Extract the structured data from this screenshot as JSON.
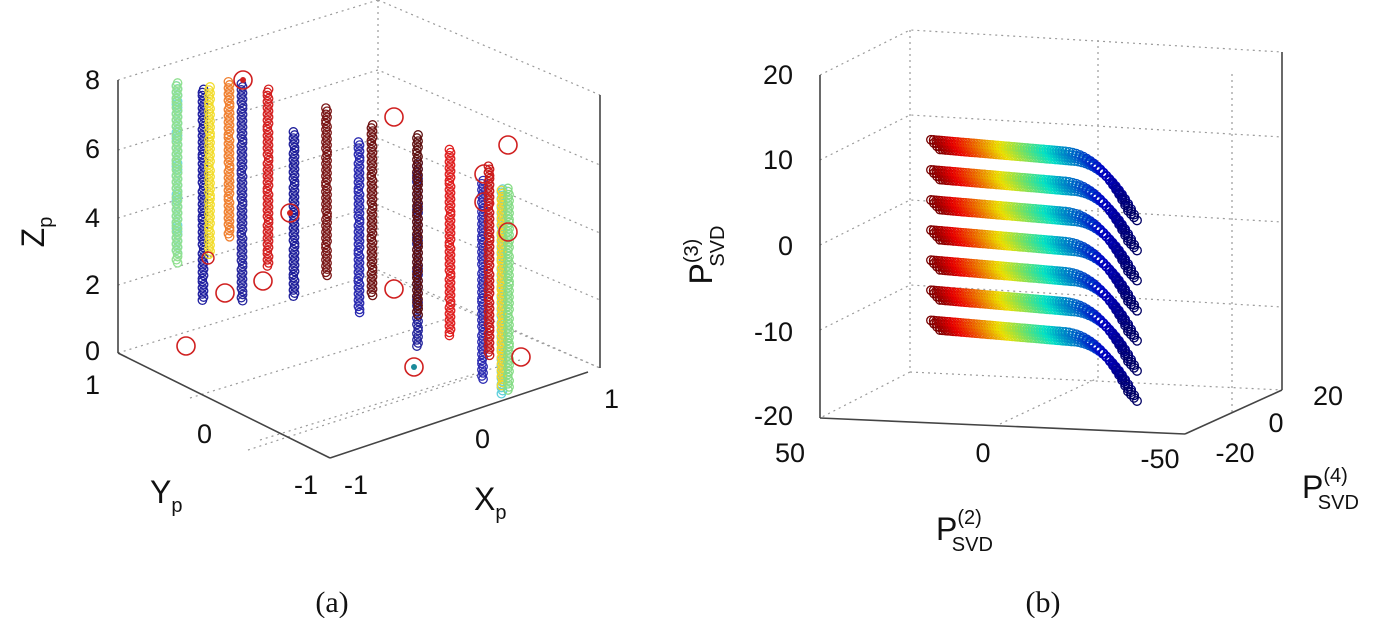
{
  "chart_data": [
    {
      "type": "scatter3d",
      "panel_label": "(a)",
      "axes": {
        "x": {
          "label": "X",
          "sub": "p",
          "ticks": [
            "-1",
            "0",
            "1"
          ],
          "range": [
            -1,
            1
          ]
        },
        "y": {
          "label": "Y",
          "sub": "p",
          "ticks": [
            "-1",
            "0",
            "1"
          ],
          "range": [
            -1,
            1
          ]
        },
        "z": {
          "label": "Z",
          "sub": "p",
          "ticks": [
            "0",
            "2",
            "4",
            "6",
            "8"
          ],
          "range": [
            0,
            8
          ]
        }
      },
      "grid": true,
      "series": [
        {
          "color": "#1f1fa0",
          "x": -0.85,
          "y": 0.35,
          "zmin": 0.5,
          "zmax": 6.7
        },
        {
          "color": "#26269e",
          "x": -0.8,
          "y": 0.1,
          "zmin": 0.2,
          "zmax": 6.6
        },
        {
          "color": "#1e1e9a",
          "x": -0.55,
          "y": -0.05,
          "zmin": 0.4,
          "zmax": 5.3
        },
        {
          "color": "#2a2ab0",
          "x": -0.45,
          "y": -0.45,
          "zmin": -0.5,
          "zmax": 4.6
        },
        {
          "color": "#25259c",
          "x": -0.25,
          "y": -0.7,
          "zmin": -1.5,
          "zmax": 3.9
        },
        {
          "color": "#2c2cb2",
          "x": 0.05,
          "y": -0.9,
          "zmin": -2.4,
          "zmax": 3.5
        },
        {
          "color": "#6fd8e0",
          "x": -0.8,
          "y": 0.6,
          "zmin": 2.2,
          "zmax": 7.2
        },
        {
          "color": "#5fd0dc",
          "x": 0.3,
          "y": -0.8,
          "zmin": -2.4,
          "zmax": 3.7
        },
        {
          "color": "#90e090",
          "x": -0.6,
          "y": 0.8,
          "zmin": 2.5,
          "zmax": 7.8
        },
        {
          "color": "#86dc86",
          "x": 0.55,
          "y": -0.6,
          "zmin": -1.7,
          "zmax": 4.3
        },
        {
          "color": "#f2dc2c",
          "x": -0.35,
          "y": 0.8,
          "zmin": 3.0,
          "zmax": 8.0
        },
        {
          "color": "#f2d52a",
          "x": 0.7,
          "y": -0.4,
          "zmin": -1.1,
          "zmax": 4.7
        },
        {
          "color": "#f08030",
          "x": -0.1,
          "y": 0.9,
          "zmin": 4.0,
          "zmax": 8.6
        },
        {
          "color": "#d42020",
          "x": 0.1,
          "y": 0.8,
          "zmin": 3.3,
          "zmax": 8.5
        },
        {
          "color": "#7a1616",
          "x": 0.35,
          "y": 0.6,
          "zmin": 3.0,
          "zmax": 8.0
        },
        {
          "color": "#701414",
          "x": 0.45,
          "y": 0.35,
          "zmin": 2.2,
          "zmax": 7.3
        },
        {
          "color": "#5e1010",
          "x": 0.55,
          "y": 0.1,
          "zmin": 1.5,
          "zmax": 6.8
        },
        {
          "color": "#e02020",
          "x": 0.65,
          "y": -0.05,
          "zmin": 0.8,
          "zmax": 6.3
        },
        {
          "color": "#c81818",
          "x": 0.8,
          "y": -0.2,
          "zmin": 0.2,
          "zmax": 5.8
        }
      ]
    },
    {
      "type": "scatter3d",
      "panel_label": "(b)",
      "axes": {
        "x": {
          "label": "P",
          "sup": "(2)",
          "sub": "SVD",
          "ticks": [
            "50",
            "0",
            "-50"
          ],
          "range": [
            50,
            -50
          ]
        },
        "y": {
          "label": "P",
          "sup": "(4)",
          "sub": "SVD",
          "ticks": [
            "-20",
            "0",
            "20"
          ],
          "range": [
            -20,
            20
          ]
        },
        "z": {
          "label": "P",
          "sup": "(3)",
          "sub": "SVD",
          "ticks": [
            "-20",
            "-10",
            "0",
            "10",
            "20"
          ],
          "range": [
            -20,
            20
          ]
        }
      },
      "grid": true,
      "colormap": "jet",
      "series": [
        {
          "z": 12
        },
        {
          "z": 8.5
        },
        {
          "z": 5
        },
        {
          "z": 1.5
        },
        {
          "z": -2
        },
        {
          "z": -5.5
        },
        {
          "z": -9
        }
      ]
    }
  ]
}
